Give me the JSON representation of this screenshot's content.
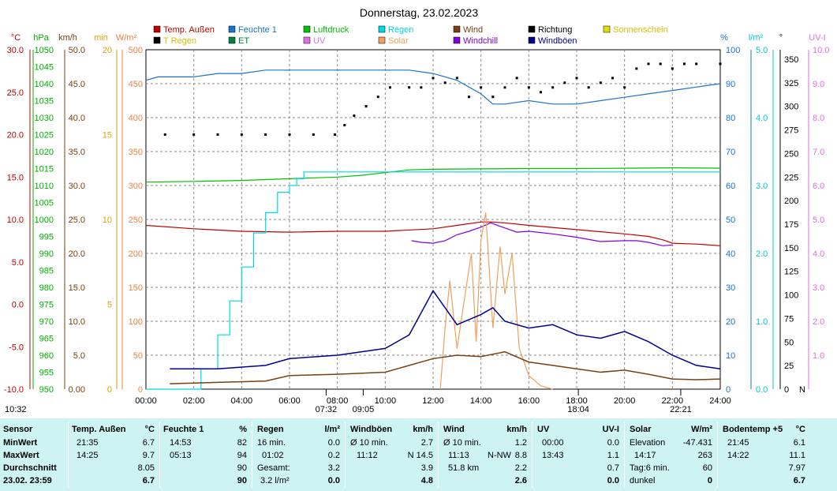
{
  "colors": {
    "temp": "#c00000",
    "humidity": "#1874cd",
    "pressure": "#00c000",
    "rain": "#00d8e8",
    "wind": "#7a4010",
    "direction": "#000000",
    "sunshine": "#e0e000",
    "t_rain": "#000000",
    "et": "#008040",
    "uv": "#e070e0",
    "solar": "#f0a060",
    "windchill": "#8000e0",
    "gust": "#000090",
    "grid": "#888888",
    "stats_bg": "#cdf3f3"
  },
  "chart": {
    "title": "Donnerstag, 23.02.2023",
    "footer_left": "10:32",
    "sun_markers": [
      {
        "label": "07:32",
        "time": 7.53
      },
      {
        "label": "09:05",
        "time": 9.08
      },
      {
        "label": "18:04",
        "time": 18.07
      },
      {
        "label": "22:21",
        "time": 22.35
      }
    ]
  },
  "chart_data": {
    "type": "line",
    "title": "Donnerstag, 23.02.2023",
    "xlabel": "",
    "xlim": [
      0,
      24
    ],
    "x_ticks": [
      "00:00",
      "02:00",
      "04:00",
      "06:00",
      "08:00",
      "10:00",
      "12:00",
      "14:00",
      "16:00",
      "18:00",
      "20:00",
      "22:00",
      "24:00"
    ],
    "axes": [
      {
        "key": "temp",
        "label": "°C",
        "range": [
          -10,
          30
        ],
        "ticks": [
          "30.0",
          "25.0",
          "20.0",
          "15.0",
          "10.0",
          "5.0",
          "0.0",
          "-5.0",
          "-10.0"
        ]
      },
      {
        "key": "pressure",
        "label": "hPa",
        "range": [
          950,
          1050
        ],
        "ticks": [
          "1050",
          "1045",
          "1040",
          "1035",
          "1030",
          "1025",
          "1020",
          "1015",
          "1010",
          "1005",
          "1000",
          "995",
          "990",
          "985",
          "980",
          "975",
          "970",
          "965",
          "960",
          "955",
          "950"
        ]
      },
      {
        "key": "wind",
        "label": "km/h",
        "range": [
          0,
          50
        ],
        "ticks": [
          "50.0",
          "45.0",
          "40.0",
          "35.0",
          "30.0",
          "25.0",
          "20.0",
          "15.0",
          "10.0",
          "5.0",
          "0.00"
        ]
      },
      {
        "key": "min",
        "label": "min",
        "range": [
          0,
          20
        ],
        "ticks": [
          "20",
          "15",
          "10",
          "5",
          "0"
        ]
      },
      {
        "key": "solar",
        "label": "W/m²",
        "range": [
          0,
          500
        ],
        "ticks": [
          "500",
          "450",
          "400",
          "350",
          "300",
          "250",
          "200",
          "150",
          "100",
          "50",
          "0"
        ]
      },
      {
        "key": "humidity",
        "label": "%",
        "range": [
          0,
          100
        ],
        "ticks": [
          "100",
          "90",
          "80",
          "70",
          "60",
          "50",
          "40",
          "30",
          "20",
          "10",
          "0"
        ]
      },
      {
        "key": "rain",
        "label": "l/m²",
        "range": [
          0,
          5
        ],
        "ticks": [
          "5.0",
          "4.0",
          "3.0",
          "2.0",
          "1.0",
          "0.0"
        ]
      },
      {
        "key": "direction",
        "label": "°",
        "range": [
          0,
          360
        ],
        "ticks": [
          "350",
          "325",
          "300",
          "275",
          "250",
          "225",
          "200",
          "175",
          "150",
          "125",
          "100",
          "75",
          "50",
          "25",
          "0"
        ]
      },
      {
        "key": "uv",
        "label": "UV-I",
        "range": [
          0,
          10
        ],
        "ticks": [
          "10.0",
          "9.0",
          "8.0",
          "7.0",
          "6.0",
          "5.0",
          "4.0",
          "3.0",
          "2.0",
          "1.0"
        ]
      }
    ],
    "direction_zero_label": "N",
    "legend": [
      {
        "label": "Temp. Außen",
        "color": "#c00000"
      },
      {
        "label": "Feuchte 1",
        "color": "#1874cd"
      },
      {
        "label": "Luftdruck",
        "color": "#00c000"
      },
      {
        "label": "Regen",
        "color": "#00d8e8"
      },
      {
        "label": "Wind",
        "color": "#7a4010"
      },
      {
        "label": "Richtung",
        "color": "#000000"
      },
      {
        "label": "Sonnenschein",
        "color": "#e0e000"
      },
      {
        "label": "T Regen",
        "color": "#000000"
      },
      {
        "label": "ET",
        "color": "#008040"
      },
      {
        "label": "UV",
        "color": "#e070e0"
      },
      {
        "label": "Solar",
        "color": "#f0a060"
      },
      {
        "label": "Windchill",
        "color": "#8000e0"
      },
      {
        "label": "Windböen",
        "color": "#000090"
      }
    ],
    "series": [
      {
        "name": "Temp. Außen",
        "axis": "temp",
        "x": [
          0,
          2,
          4,
          6,
          8,
          10,
          12,
          13,
          14,
          14.42,
          15,
          16,
          18,
          20,
          21,
          21.6,
          22,
          23,
          24
        ],
        "y": [
          9.3,
          8.9,
          8.6,
          8.5,
          8.6,
          8.6,
          8.9,
          9.3,
          9.7,
          9.7,
          9.6,
          9.3,
          8.8,
          8.3,
          8.0,
          7.6,
          7.2,
          7.1,
          6.9
        ]
      },
      {
        "name": "Windchill",
        "axis": "temp",
        "x": [
          11.1,
          11.5,
          12,
          12.5,
          13,
          13.5,
          14,
          14.4,
          15,
          15.5,
          16,
          17,
          18,
          19,
          20,
          20.5,
          21,
          21.6,
          22
        ],
        "y": [
          7.5,
          7.3,
          7.2,
          7.5,
          8.2,
          8.6,
          9.1,
          9.6,
          9.0,
          8.5,
          8.6,
          8.3,
          7.9,
          7.4,
          7.5,
          7.5,
          7.3,
          6.9,
          7.0
        ]
      },
      {
        "name": "Feuchte 1",
        "axis": "humidity",
        "x": [
          0,
          0.5,
          1,
          2,
          3,
          4,
          5,
          6,
          7,
          8,
          9,
          10,
          11,
          12,
          13,
          14,
          14.5,
          15,
          16,
          17,
          18,
          19,
          20,
          21,
          22,
          23,
          24
        ],
        "y": [
          91,
          92,
          92,
          92,
          93,
          93,
          94,
          94,
          94,
          94,
          94,
          94,
          94,
          93,
          91,
          87,
          84,
          84,
          85,
          84,
          84,
          85,
          86,
          87,
          88,
          89,
          90
        ]
      },
      {
        "name": "Luftdruck",
        "axis": "pressure",
        "x": [
          0,
          2,
          4,
          6,
          8,
          9,
          10,
          11,
          12,
          14,
          16,
          18,
          20,
          22,
          24
        ],
        "y": [
          1011,
          1011.2,
          1011.5,
          1012,
          1012.5,
          1013,
          1013.8,
          1014.6,
          1014.8,
          1014.9,
          1015,
          1015,
          1015.1,
          1015.2,
          1015.1
        ]
      },
      {
        "name": "Regen",
        "axis": "rain",
        "x": [
          0,
          1.8,
          2.3,
          3,
          3.5,
          4,
          4.5,
          5,
          5.5,
          6,
          6.3,
          6.6,
          7,
          8,
          24
        ],
        "y": [
          0,
          0,
          0.3,
          0.8,
          1.3,
          1.8,
          2.3,
          2.6,
          2.9,
          3.0,
          3.1,
          3.2,
          3.2,
          3.2,
          3.2
        ]
      },
      {
        "name": "Solar",
        "axis": "solar",
        "x": [
          12.3,
          12.5,
          12.7,
          13,
          13.3,
          13.6,
          13.8,
          14,
          14.2,
          14.5,
          14.8,
          15,
          15.3,
          15.6,
          16,
          16.5,
          17
        ],
        "y": [
          0,
          90,
          160,
          60,
          130,
          200,
          70,
          220,
          260,
          90,
          210,
          140,
          200,
          60,
          20,
          5,
          0
        ]
      },
      {
        "name": "Wind",
        "axis": "wind",
        "x": [
          1,
          3,
          5,
          6,
          8,
          10,
          11,
          12,
          13,
          14,
          15,
          16,
          17,
          18,
          19,
          20,
          21,
          22,
          23,
          24
        ],
        "y": [
          0.8,
          1.0,
          1.2,
          2.0,
          2.2,
          2.5,
          3.5,
          4.5,
          5.0,
          4.8,
          5.5,
          4.0,
          3.5,
          3.0,
          2.5,
          2.8,
          2.2,
          1.5,
          1.4,
          1.5
        ]
      },
      {
        "name": "Windböen",
        "axis": "wind",
        "x": [
          1,
          3,
          5,
          6,
          8,
          10,
          11,
          12,
          13,
          14,
          14.5,
          15,
          16,
          17,
          18,
          19,
          20,
          21,
          22,
          23,
          24
        ],
        "y": [
          3.0,
          3.0,
          3.5,
          4.5,
          5.0,
          6.0,
          8.0,
          14.5,
          9.5,
          11.0,
          12.0,
          10.0,
          9.0,
          9.5,
          8.0,
          7.5,
          8.5,
          7.0,
          5.0,
          3.5,
          3.0
        ]
      },
      {
        "name": "Richtung",
        "axis": "direction",
        "x": [
          0.8,
          2,
          3,
          4,
          5,
          6,
          7,
          7.9,
          8.3,
          8.7,
          9.2,
          9.7,
          10.2,
          11,
          11.5,
          12,
          12.5,
          13,
          13.5,
          14,
          14.5,
          15,
          15.5,
          16,
          16.5,
          17,
          17.5,
          18,
          18.5,
          19,
          19.5,
          20,
          20.5,
          21,
          21.5,
          22,
          22.5,
          23,
          24
        ],
        "y": [
          270,
          270,
          270,
          270,
          270,
          270,
          270,
          270,
          280,
          290,
          300,
          310,
          320,
          320,
          320,
          330,
          325,
          330,
          310,
          320,
          310,
          320,
          330,
          320,
          315,
          320,
          325,
          330,
          320,
          325,
          330,
          320,
          340,
          345,
          345,
          340,
          345,
          345,
          345
        ]
      }
    ],
    "stats": {
      "sensor": {
        "title": "Sensor",
        "rows": [
          "MinWert",
          "MaxWert",
          "Durchschnitt",
          "23.02.  23:59"
        ]
      },
      "temp": {
        "title": "Temp. Außen",
        "unit": "°C",
        "min_time": "21:35",
        "min": "6.7",
        "max_time": "14:25",
        "max": "9.7",
        "avg": "8.05",
        "current": "6.7"
      },
      "humidity": {
        "title": "Feuchte 1",
        "unit": "%",
        "min_time": "14:53",
        "min": "82",
        "max_time": "05:13",
        "max": "94",
        "avg": "90",
        "current": "90"
      },
      "rain": {
        "title": "Regen",
        "unit": "l/m²",
        "r1_label": "16 min.",
        "r1_val": "0.0",
        "r2_label": "01:02",
        "r2_val": "0.2",
        "r3_label": "Gesamt:",
        "r3_val": "3.2",
        "r4_label": "3.2 l/m²",
        "r4_val": "0.0"
      },
      "gust": {
        "title": "Windböen",
        "unit": "km/h",
        "r1_label": "Ø 10 min.",
        "r1_val": "2.7",
        "r2_label": "11:12",
        "r2_val": "N 14.5",
        "r3_val": "3.9",
        "r4_val": "4.8"
      },
      "wind": {
        "title": "Wind",
        "unit": "km/h",
        "r1_label": "Ø 10 min.",
        "r1_val": "1.2",
        "r2_label": "11:13",
        "r2_mid": "N-NW",
        "r2_val": "8.8",
        "r3_label": "51.8 km",
        "r3_val": "2.2",
        "r4_val": "2.6"
      },
      "uv": {
        "title": "UV",
        "unit": "UV-I",
        "r1_label": "00:00",
        "r1_val": "0.0",
        "r2_label": "13:43",
        "r2_val": "1.1",
        "r3_val": "0.7",
        "r4_val": "0.0"
      },
      "solar": {
        "title": "Solar",
        "unit": "W/m²",
        "r1_label": "Elevation",
        "r1_val": "-47.431",
        "r2_label": "14:17",
        "r2_val": "263",
        "r3_label": "Tag:6 min.",
        "r3_val": "60",
        "r4_label": "dunkel",
        "r4_val": "0"
      },
      "soil": {
        "title": "Bodentemp +5",
        "unit": "°C",
        "r1_label": "21:45",
        "r1_val": "6.1",
        "r2_label": "14:22",
        "r2_val": "11.1",
        "r3_val": "7.97",
        "r4_val": "6.7"
      }
    }
  }
}
